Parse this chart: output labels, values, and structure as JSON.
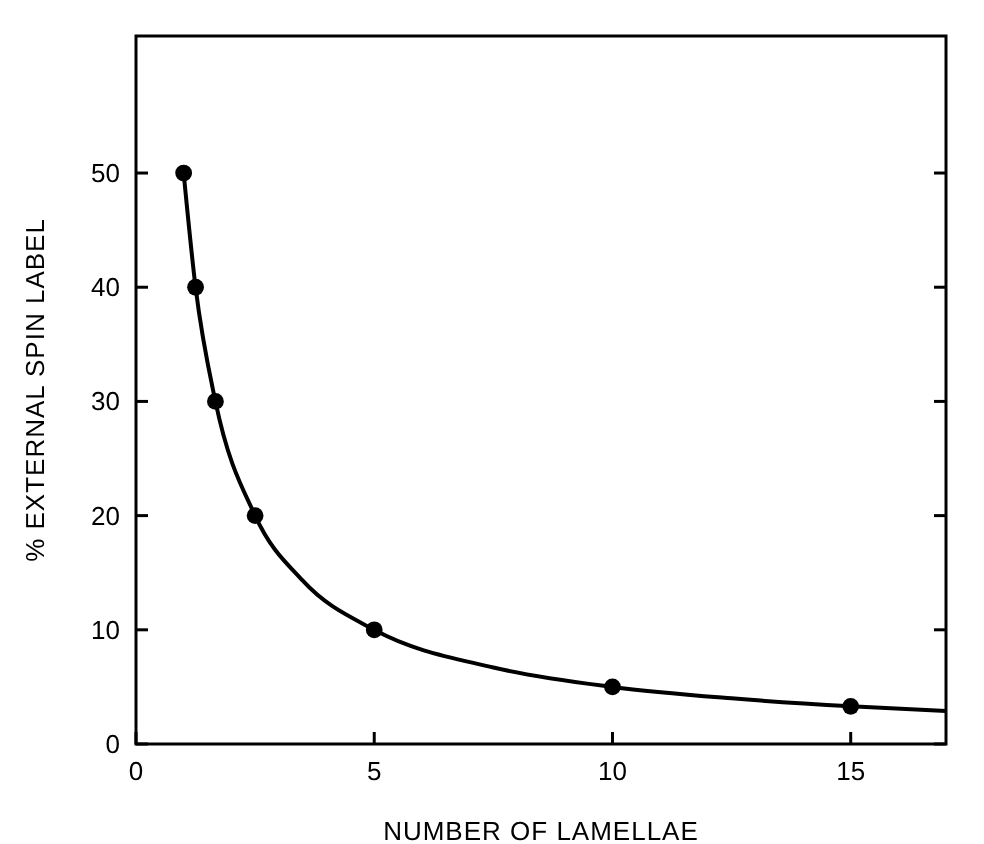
{
  "chart_data": {
    "type": "line",
    "xlabel": "NUMBER OF LAMELLAE",
    "ylabel": "% EXTERNAL SPIN LABEL",
    "xlim": [
      0,
      17
    ],
    "ylim": [
      0,
      62
    ],
    "xticks": [
      0,
      5,
      10,
      15
    ],
    "yticks": [
      0,
      10,
      20,
      30,
      40,
      50
    ],
    "grid": false,
    "series": [
      {
        "color": "#000000",
        "marker": "none",
        "line_style": "solid",
        "x": [
          1,
          1.25,
          1.667,
          2.5,
          3.5,
          5,
          7.5,
          10,
          12.5,
          15,
          17
        ],
        "values": [
          50,
          40,
          30,
          20,
          14.3,
          10,
          6.7,
          5,
          4,
          3.3,
          2.9
        ]
      },
      {
        "type": "scatter",
        "color": "#000000",
        "marker": "circle",
        "x": [
          1,
          1.25,
          1.667,
          2.5,
          5,
          10,
          15
        ],
        "values": [
          50,
          40,
          30,
          20,
          10,
          5,
          3.3
        ]
      }
    ]
  }
}
